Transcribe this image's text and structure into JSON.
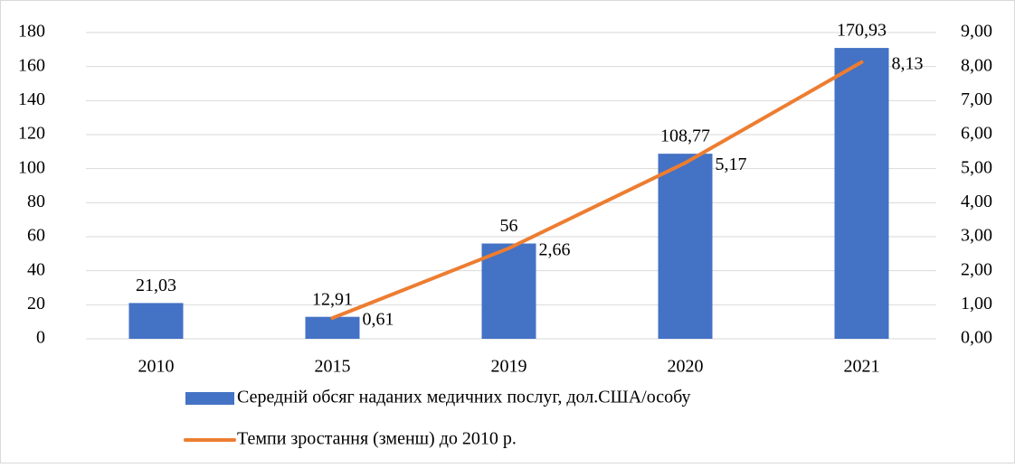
{
  "chart_data": {
    "type": "bar",
    "categories": [
      "2010",
      "2015",
      "2019",
      "2020",
      "2021"
    ],
    "series": [
      {
        "name": "Середній обсяг наданих медичних послуг, дол.США/особу",
        "type": "bar",
        "color": "#4472c4",
        "values": [
          21.03,
          12.91,
          56,
          108.77,
          170.93
        ],
        "value_labels": [
          "21,03",
          "12,91",
          "56",
          "108,77",
          "170,93"
        ]
      },
      {
        "name": "Темпи зростання (зменш) до 2010 р.",
        "type": "line",
        "axis": "y2",
        "color": "#ed7d31",
        "values": [
          null,
          0.61,
          2.66,
          5.17,
          8.13
        ],
        "value_labels": [
          null,
          "0,61",
          "2,66",
          "5,17",
          "8,13"
        ]
      }
    ],
    "ylim": [
      0,
      180
    ],
    "yticks": [
      0,
      20,
      40,
      60,
      80,
      100,
      120,
      140,
      160,
      180
    ],
    "y2lim": [
      0,
      9
    ],
    "y2ticks": [
      {
        "value": 0,
        "label": "0,00"
      },
      {
        "value": 1,
        "label": "1,00"
      },
      {
        "value": 2,
        "label": "2,00"
      },
      {
        "value": 3,
        "label": "3,00"
      },
      {
        "value": 4,
        "label": "4,00"
      },
      {
        "value": 5,
        "label": "5,00"
      },
      {
        "value": 6,
        "label": "6,00"
      },
      {
        "value": 7,
        "label": "7,00"
      },
      {
        "value": 8,
        "label": "8,00"
      },
      {
        "value": 9,
        "label": "9,00"
      }
    ],
    "grid": true,
    "legend": "bottom"
  }
}
